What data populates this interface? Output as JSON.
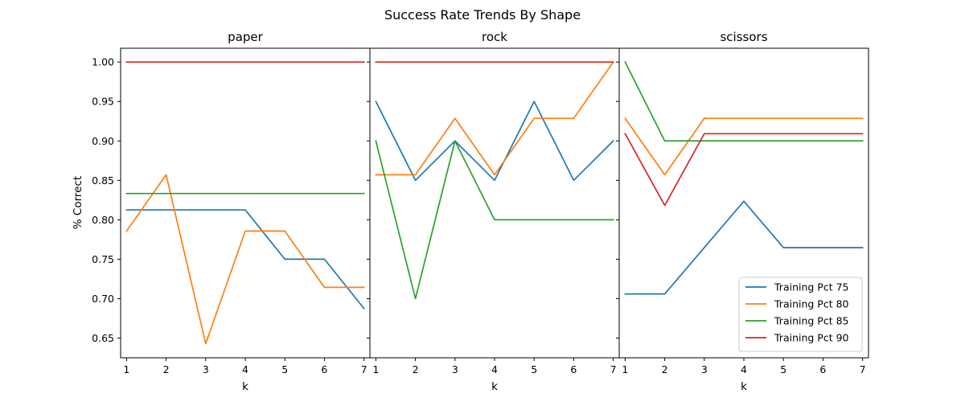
{
  "chart_data": {
    "type": "line",
    "title": "Success Rate Trends By Shape",
    "ylabel": "% Correct",
    "xlabel": "k",
    "x": [
      1,
      2,
      3,
      4,
      5,
      6,
      7
    ],
    "xlim": [
      0.85,
      7.15
    ],
    "ylim": [
      0.625,
      1.0175
    ],
    "yticks": [
      "0.65",
      "0.70",
      "0.75",
      "0.80",
      "0.85",
      "0.90",
      "0.95",
      "1.00"
    ],
    "shared_y": true,
    "grid": false,
    "legend": {
      "panel": "scissors",
      "placement": "lower-right",
      "entries": [
        "Training Pct 75",
        "Training Pct 80",
        "Training Pct 85",
        "Training Pct 90"
      ]
    },
    "colors": {
      "Training Pct 75": "#1f77b4",
      "Training Pct 80": "#ff7f0e",
      "Training Pct 85": "#2ca02c",
      "Training Pct 90": "#d62728"
    },
    "panels": [
      {
        "title": "paper",
        "series": [
          {
            "name": "Training Pct 75",
            "values": [
              0.8125,
              0.8125,
              0.8125,
              0.8125,
              0.75,
              0.75,
              0.6875
            ]
          },
          {
            "name": "Training Pct 80",
            "values": [
              0.7857,
              0.8571,
              0.6429,
              0.7857,
              0.7857,
              0.7143,
              0.7143
            ]
          },
          {
            "name": "Training Pct 85",
            "values": [
              0.8333,
              0.8333,
              0.8333,
              0.8333,
              0.8333,
              0.8333,
              0.8333
            ]
          },
          {
            "name": "Training Pct 90",
            "values": [
              1.0,
              1.0,
              1.0,
              1.0,
              1.0,
              1.0,
              1.0
            ]
          }
        ]
      },
      {
        "title": "rock",
        "series": [
          {
            "name": "Training Pct 75",
            "values": [
              0.95,
              0.85,
              0.9,
              0.85,
              0.95,
              0.85,
              0.9
            ]
          },
          {
            "name": "Training Pct 80",
            "values": [
              0.8571,
              0.8571,
              0.9286,
              0.8571,
              0.9286,
              0.9286,
              1.0
            ]
          },
          {
            "name": "Training Pct 85",
            "values": [
              0.9,
              0.7,
              0.9,
              0.8,
              0.8,
              0.8,
              0.8
            ]
          },
          {
            "name": "Training Pct 90",
            "values": [
              1.0,
              1.0,
              1.0,
              1.0,
              1.0,
              1.0,
              1.0
            ]
          }
        ]
      },
      {
        "title": "scissors",
        "series": [
          {
            "name": "Training Pct 75",
            "values": [
              0.7059,
              0.7059,
              0.7647,
              0.8235,
              0.7647,
              0.7647,
              0.7647
            ]
          },
          {
            "name": "Training Pct 80",
            "values": [
              0.9286,
              0.8571,
              0.9286,
              0.9286,
              0.9286,
              0.9286,
              0.9286
            ]
          },
          {
            "name": "Training Pct 85",
            "values": [
              1.0,
              0.9,
              0.9,
              0.9,
              0.9,
              0.9,
              0.9
            ]
          },
          {
            "name": "Training Pct 90",
            "values": [
              0.9091,
              0.8182,
              0.9091,
              0.9091,
              0.9091,
              0.9091,
              0.9091
            ]
          }
        ]
      }
    ]
  }
}
